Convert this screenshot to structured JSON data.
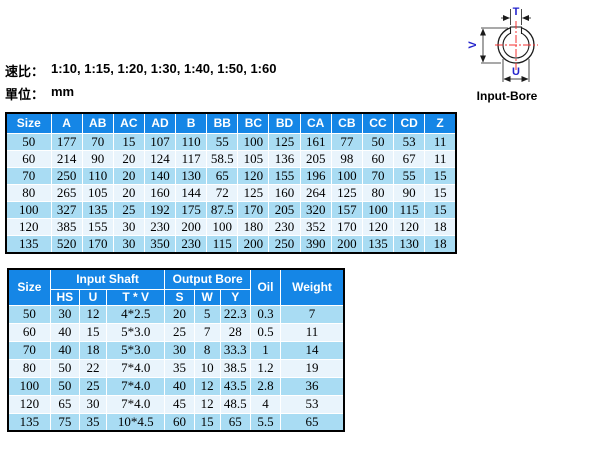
{
  "colors": {
    "header_bg": "#1586E6",
    "row_dark": "#A9DCF3",
    "row_light": "#E9F4FC",
    "header_text": "#FFFFFF",
    "dim_label": "#2424CC",
    "centerline": "#F53030"
  },
  "intro": {
    "ratio_label": "速比：",
    "ratio_values": "1:10, 1:15, 1:20, 1:30, 1:40, 1:50, 1:60",
    "unit_label": "單位：",
    "unit_value": "mm"
  },
  "diagram": {
    "caption": "Input-Bore",
    "dim_top": "T",
    "dim_left": "V",
    "dim_bottom": "U"
  },
  "table1": {
    "headers": [
      "Size",
      "A",
      "AB",
      "AC",
      "AD",
      "B",
      "BB",
      "BC",
      "BD",
      "CA",
      "CB",
      "CC",
      "CD",
      "Z"
    ],
    "rows": [
      [
        "50",
        "177",
        "70",
        "15",
        "107",
        "110",
        "55",
        "100",
        "125",
        "161",
        "77",
        "50",
        "53",
        "11"
      ],
      [
        "60",
        "214",
        "90",
        "20",
        "124",
        "117",
        "58.5",
        "105",
        "136",
        "205",
        "98",
        "60",
        "67",
        "11"
      ],
      [
        "70",
        "250",
        "110",
        "20",
        "140",
        "130",
        "65",
        "120",
        "155",
        "196",
        "100",
        "70",
        "55",
        "15"
      ],
      [
        "80",
        "265",
        "105",
        "20",
        "160",
        "144",
        "72",
        "125",
        "160",
        "264",
        "125",
        "80",
        "90",
        "15"
      ],
      [
        "100",
        "327",
        "135",
        "25",
        "192",
        "175",
        "87.5",
        "170",
        "205",
        "320",
        "157",
        "100",
        "115",
        "15"
      ],
      [
        "120",
        "385",
        "155",
        "30",
        "230",
        "200",
        "100",
        "180",
        "230",
        "352",
        "170",
        "120",
        "120",
        "18"
      ],
      [
        "135",
        "520",
        "170",
        "30",
        "350",
        "230",
        "115",
        "200",
        "250",
        "390",
        "200",
        "135",
        "130",
        "18"
      ]
    ]
  },
  "table2": {
    "col_size": "Size",
    "group_input": "Input Shaft",
    "group_output": "Output Bore",
    "col_oil": "Oil",
    "col_weight": "Weight",
    "subheaders": [
      "HS",
      "U",
      "T * V",
      "S",
      "W",
      "Y"
    ],
    "rows": [
      [
        "50",
        "30",
        "12",
        "4*2.5",
        "20",
        "5",
        "22.3",
        "0.3",
        "7"
      ],
      [
        "60",
        "40",
        "15",
        "5*3.0",
        "25",
        "7",
        "28",
        "0.5",
        "11"
      ],
      [
        "70",
        "40",
        "18",
        "5*3.0",
        "30",
        "8",
        "33.3",
        "1",
        "14"
      ],
      [
        "80",
        "50",
        "22",
        "7*4.0",
        "35",
        "10",
        "38.5",
        "1.2",
        "19"
      ],
      [
        "100",
        "50",
        "25",
        "7*4.0",
        "40",
        "12",
        "43.5",
        "2.8",
        "36"
      ],
      [
        "120",
        "65",
        "30",
        "7*4.0",
        "45",
        "12",
        "48.5",
        "4",
        "53"
      ],
      [
        "135",
        "75",
        "35",
        "10*4.5",
        "60",
        "15",
        "65",
        "5.5",
        "65"
      ]
    ]
  }
}
